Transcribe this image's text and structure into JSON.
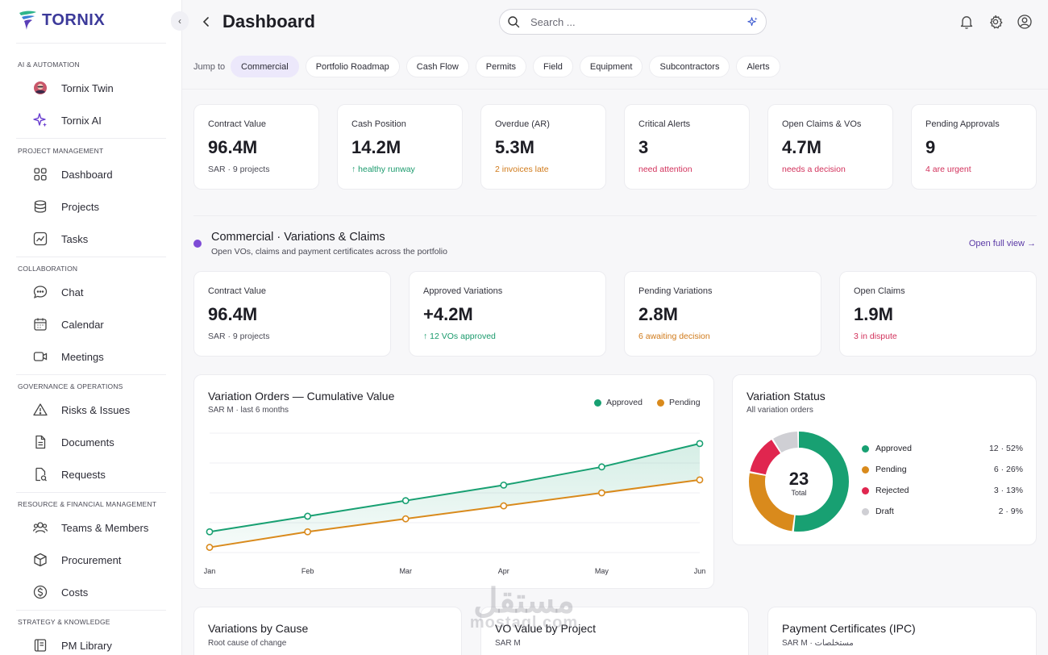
{
  "brand": {
    "name": "TORNIX",
    "color": "#3c3a9a"
  },
  "sidebar": {
    "sections": [
      {
        "title": "AI & Automation",
        "items": [
          {
            "label": "Tornix Twin",
            "icon": "avatar-icon"
          },
          {
            "label": "Tornix AI",
            "icon": "sparkle-icon"
          }
        ]
      },
      {
        "title": "Project Management",
        "items": [
          {
            "label": "Dashboard",
            "icon": "grid-icon"
          },
          {
            "label": "Projects",
            "icon": "stack-icon"
          },
          {
            "label": "Tasks",
            "icon": "chart-line-icon"
          }
        ]
      },
      {
        "title": "Collaboration",
        "items": [
          {
            "label": "Chat",
            "icon": "chat-icon"
          },
          {
            "label": "Calendar",
            "icon": "calendar-icon"
          },
          {
            "label": "Meetings",
            "icon": "video-icon"
          }
        ]
      },
      {
        "title": "Governance & Operations",
        "items": [
          {
            "label": "Risks & Issues",
            "icon": "warning-icon"
          },
          {
            "label": "Documents",
            "icon": "document-icon"
          },
          {
            "label": "Requests",
            "icon": "request-icon"
          }
        ]
      },
      {
        "title": "Resource & Financial Management",
        "items": [
          {
            "label": "Teams & Members",
            "icon": "users-icon"
          },
          {
            "label": "Procurement",
            "icon": "box-icon"
          },
          {
            "label": "Costs",
            "icon": "dollar-icon"
          }
        ]
      },
      {
        "title": "Strategy & Knowledge",
        "items": [
          {
            "label": "PM Library",
            "icon": "book-icon"
          }
        ]
      }
    ]
  },
  "header": {
    "title": "Dashboard",
    "search_placeholder": "Search ...",
    "search_value": ""
  },
  "jump": {
    "label": "Jump to",
    "chips": [
      "Commercial",
      "Portfolio Roadmap",
      "Cash Flow",
      "Permits",
      "Field",
      "Equipment",
      "Subcontractors",
      "Alerts"
    ],
    "active": "Commercial"
  },
  "kpis": [
    {
      "label": "Contract Value",
      "value": "96.4M",
      "sub": "SAR · 9 projects",
      "tone": "grey"
    },
    {
      "label": "Cash Position",
      "value": "14.2M",
      "sub": "↑ healthy runway",
      "tone": "green"
    },
    {
      "label": "Overdue (AR)",
      "value": "5.3M",
      "sub": "2 invoices late",
      "tone": "orange"
    },
    {
      "label": "Critical Alerts",
      "value": "3",
      "sub": "need attention",
      "tone": "red"
    },
    {
      "label": "Open Claims & VOs",
      "value": "4.7M",
      "sub": "needs a decision",
      "tone": "red"
    },
    {
      "label": "Pending Approvals",
      "value": "9",
      "sub": "4 are urgent",
      "tone": "red"
    }
  ],
  "commercial": {
    "title": "Commercial · Variations & Claims",
    "subtitle": "Open VOs, claims and payment certificates across the portfolio",
    "open_full": "Open full view →",
    "kpis": [
      {
        "label": "Contract Value",
        "value": "96.4M",
        "sub": "SAR · 9 projects",
        "tone": "grey"
      },
      {
        "label": "Approved Variations",
        "value": "+4.2M",
        "sub": "↑ 12 VOs approved",
        "tone": "green"
      },
      {
        "label": "Pending Variations",
        "value": "2.8M",
        "sub": "6 awaiting decision",
        "tone": "orange"
      },
      {
        "label": "Open Claims",
        "value": "1.9M",
        "sub": "3 in dispute",
        "tone": "red"
      }
    ]
  },
  "vo_chart": {
    "title": "Variation Orders — Cumulative Value",
    "subtitle": "SAR M · last 6 months"
  },
  "status_chart": {
    "title": "Variation Status",
    "subtitle": "All variation orders",
    "center_value": "23",
    "center_label": "Total"
  },
  "bottom_cards": [
    {
      "title": "Variations by Cause",
      "subtitle": "Root cause of change"
    },
    {
      "title": "VO Value by Project",
      "subtitle": "SAR M"
    },
    {
      "title": "Payment Certificates (IPC)",
      "subtitle": "SAR M · مستخلصات"
    }
  ],
  "watermark": {
    "text": "مستقل",
    "sub": "mostaql.com"
  },
  "colors": {
    "approved": "#18a072",
    "pending": "#d98a1c",
    "rejected": "#e0264f",
    "draft": "#cfcfd4",
    "accent": "#7e4bd6"
  },
  "chart_data": [
    {
      "type": "line",
      "x": [
        "Jan",
        "Feb",
        "Mar",
        "Apr",
        "May",
        "Jun"
      ],
      "series": [
        {
          "name": "Approved",
          "values": [
            0.8,
            1.4,
            2.0,
            2.6,
            3.3,
            4.2
          ],
          "color": "#18a072"
        },
        {
          "name": "Pending",
          "values": [
            0.2,
            0.8,
            1.3,
            1.8,
            2.3,
            2.8
          ],
          "color": "#d98a1c"
        }
      ],
      "ylim": [
        0,
        4.6
      ],
      "grid": true,
      "legend": "top-right",
      "title": "Variation Orders — Cumulative Value",
      "subtitle": "SAR M · last 6 months"
    },
    {
      "type": "pie",
      "donut": true,
      "categories": [
        "Approved",
        "Pending",
        "Rejected",
        "Draft"
      ],
      "values": [
        12,
        6,
        3,
        2
      ],
      "labels": [
        "12 · 52%",
        "6 · 26%",
        "3 · 13%",
        "2 · 9%"
      ],
      "colors": [
        "#18a072",
        "#d98a1c",
        "#e0264f",
        "#cfcfd4"
      ],
      "legend": "right",
      "title": "Variation Status",
      "subtitle": "All variation orders"
    }
  ]
}
